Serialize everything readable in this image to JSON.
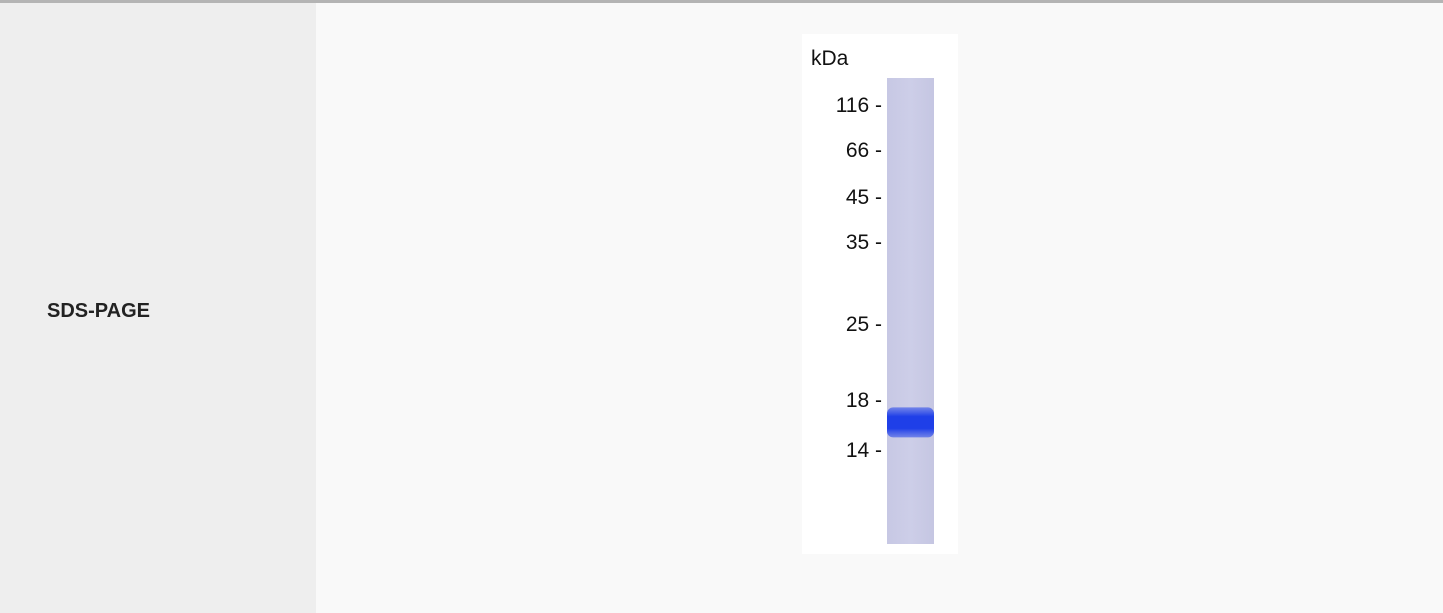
{
  "row": {
    "label": "SDS-PAGE"
  },
  "gel": {
    "unit_label": "kDa",
    "markers": [
      {
        "label": "116 -",
        "kda": 116
      },
      {
        "label": "66 -",
        "kda": 66
      },
      {
        "label": "45 -",
        "kda": 45
      },
      {
        "label": "35 -",
        "kda": 35
      },
      {
        "label": "25 -",
        "kda": 25
      },
      {
        "label": "18 -",
        "kda": 18
      },
      {
        "label": "14 -",
        "kda": 14
      }
    ],
    "band_kda": 16,
    "lane_color": "#cbcce6",
    "band_color": "#1f3fe8"
  }
}
